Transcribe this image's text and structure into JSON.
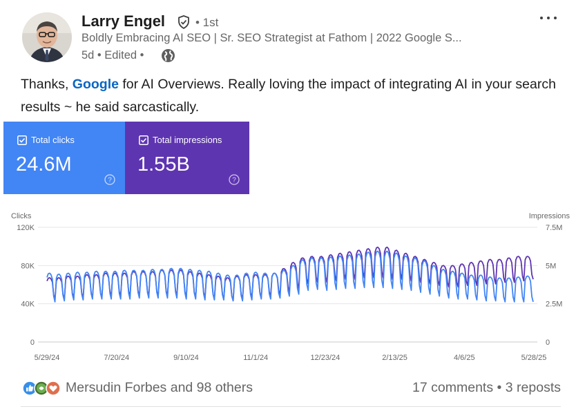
{
  "author": {
    "name": "Larry Engel",
    "degree": "• 1st",
    "headline": "Boldly Embracing AI SEO | Sr. SEO Strategist at Fathom | 2022 Google S...",
    "meta": "5d • Edited •"
  },
  "post": {
    "text_before": "Thanks, ",
    "mention": "Google",
    "text_after": " for AI Overviews. Really loving the impact of integrating AI in your search results ~ he said sarcastically."
  },
  "cards": {
    "clicks_label": "Total clicks",
    "clicks_value": "24.6M",
    "impressions_label": "Total impressions",
    "impressions_value": "1.55B"
  },
  "chart_data": {
    "type": "line",
    "left_axis": {
      "label": "Clicks",
      "ticks": [
        "0",
        "40K",
        "80K",
        "120K"
      ],
      "range": [
        0,
        120000
      ]
    },
    "right_axis": {
      "label": "Impressions",
      "ticks": [
        "0",
        "2.5M",
        "5M",
        "7.5M"
      ],
      "range": [
        0,
        7500000
      ]
    },
    "x_ticks": [
      "5/29/24",
      "7/20/24",
      "9/10/24",
      "11/1/24",
      "12/23/24",
      "2/13/25",
      "4/6/25",
      "5/28/25"
    ],
    "series": [
      {
        "name": "Clicks",
        "axis": "left",
        "color": "#4285f4",
        "weekly_range": [
          [
            42000,
            72000
          ],
          [
            43000,
            71000
          ],
          [
            44000,
            72000
          ],
          [
            44000,
            73000
          ],
          [
            45000,
            73000
          ],
          [
            45000,
            74000
          ],
          [
            45000,
            74000
          ],
          [
            45000,
            74000
          ],
          [
            45000,
            75000
          ],
          [
            46000,
            75000
          ],
          [
            46000,
            75000
          ],
          [
            46000,
            76000
          ],
          [
            46000,
            76000
          ],
          [
            46000,
            77000
          ],
          [
            45000,
            77000
          ],
          [
            45000,
            76000
          ],
          [
            44000,
            75000
          ],
          [
            44000,
            74000
          ],
          [
            44000,
            72000
          ],
          [
            43000,
            70000
          ],
          [
            43000,
            70000
          ],
          [
            44000,
            72000
          ],
          [
            45000,
            73000
          ],
          [
            45000,
            72000
          ],
          [
            46000,
            72000
          ],
          [
            48000,
            75000
          ],
          [
            50000,
            80000
          ],
          [
            54000,
            86000
          ],
          [
            55000,
            88000
          ],
          [
            54000,
            88000
          ],
          [
            55000,
            89000
          ],
          [
            56000,
            90000
          ],
          [
            56000,
            91000
          ],
          [
            57000,
            92000
          ],
          [
            57000,
            94000
          ],
          [
            57000,
            95000
          ],
          [
            56000,
            95000
          ],
          [
            55000,
            93000
          ],
          [
            54000,
            90000
          ],
          [
            52000,
            88000
          ],
          [
            50000,
            85000
          ],
          [
            48000,
            80000
          ],
          [
            46000,
            76000
          ],
          [
            45000,
            74000
          ],
          [
            45000,
            72000
          ],
          [
            44000,
            70000
          ],
          [
            43000,
            70000
          ],
          [
            43000,
            68000
          ],
          [
            42000,
            67000
          ],
          [
            42000,
            67000
          ],
          [
            42000,
            68000
          ],
          [
            42000,
            69000
          ]
        ]
      },
      {
        "name": "Impressions",
        "axis": "right",
        "color": "#5e35b1",
        "weekly_range": [
          [
            2800000,
            4200000
          ],
          [
            2800000,
            4200000
          ],
          [
            2900000,
            4300000
          ],
          [
            2900000,
            4300000
          ],
          [
            2900000,
            4400000
          ],
          [
            2900000,
            4400000
          ],
          [
            3000000,
            4500000
          ],
          [
            3000000,
            4500000
          ],
          [
            3000000,
            4500000
          ],
          [
            3000000,
            4600000
          ],
          [
            3000000,
            4600000
          ],
          [
            3000000,
            4600000
          ],
          [
            3000000,
            4700000
          ],
          [
            3000000,
            4700000
          ],
          [
            2900000,
            4700000
          ],
          [
            2900000,
            4600000
          ],
          [
            2900000,
            4500000
          ],
          [
            2800000,
            4400000
          ],
          [
            2800000,
            4300000
          ],
          [
            2700000,
            4200000
          ],
          [
            2800000,
            4300000
          ],
          [
            2900000,
            4400000
          ],
          [
            2900000,
            4400000
          ],
          [
            3000000,
            4400000
          ],
          [
            3100000,
            4500000
          ],
          [
            3300000,
            4800000
          ],
          [
            3500000,
            5200000
          ],
          [
            3800000,
            5500000
          ],
          [
            3900000,
            5600000
          ],
          [
            3900000,
            5600000
          ],
          [
            4000000,
            5700000
          ],
          [
            4100000,
            5800000
          ],
          [
            4100000,
            5900000
          ],
          [
            4200000,
            6000000
          ],
          [
            4200000,
            6100000
          ],
          [
            4200000,
            6200000
          ],
          [
            4100000,
            6200000
          ],
          [
            4100000,
            6000000
          ],
          [
            4000000,
            5800000
          ],
          [
            3900000,
            5600000
          ],
          [
            3800000,
            5400000
          ],
          [
            3700000,
            5200000
          ],
          [
            3600000,
            5000000
          ],
          [
            3600000,
            5000000
          ],
          [
            3700000,
            5100000
          ],
          [
            3700000,
            5200000
          ],
          [
            3800000,
            5300000
          ],
          [
            3800000,
            5400000
          ],
          [
            3900000,
            5400000
          ],
          [
            3900000,
            5500000
          ],
          [
            4000000,
            5600000
          ],
          [
            4100000,
            5600000
          ]
        ]
      }
    ]
  },
  "social": {
    "reactions_text": "Mersudin Forbes and 98 others",
    "comments": "17 comments",
    "sep": " • ",
    "reposts": "3 reposts"
  },
  "colors": {
    "link": "#0a66c2",
    "clicks": "#4285f4",
    "impressions": "#5e35b1"
  },
  "icons": [
    "verified-shield-icon",
    "globe-icon",
    "more-options-icon",
    "checkbox-icon",
    "help-icon",
    "like-reaction-icon",
    "celebrate-reaction-icon",
    "love-reaction-icon"
  ]
}
